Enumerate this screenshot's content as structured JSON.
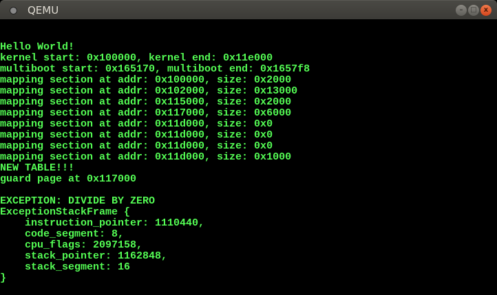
{
  "window": {
    "title": "QEMU",
    "buttons": {
      "minimize": "–",
      "maximize": "□",
      "close": "x"
    }
  },
  "console": {
    "color": "#54fc54",
    "lines": [
      "",
      "",
      "Hello World!",
      "kernel start: 0x100000, kernel end: 0x11e000",
      "multiboot start: 0x165170, multiboot end: 0x1657f8",
      "mapping section at addr: 0x100000, size: 0x2000",
      "mapping section at addr: 0x102000, size: 0x13000",
      "mapping section at addr: 0x115000, size: 0x2000",
      "mapping section at addr: 0x117000, size: 0x6000",
      "mapping section at addr: 0x11d000, size: 0x0",
      "mapping section at addr: 0x11d000, size: 0x0",
      "mapping section at addr: 0x11d000, size: 0x0",
      "mapping section at addr: 0x11d000, size: 0x1000",
      "NEW TABLE!!!",
      "guard page at 0x117000",
      "",
      "EXCEPTION: DIVIDE BY ZERO",
      "ExceptionStackFrame {",
      "    instruction_pointer: 1110440,",
      "    code_segment: 8,",
      "    cpu_flags: 2097158,",
      "    stack_pointer: 1162848,",
      "    stack_segment: 16",
      "}"
    ]
  }
}
